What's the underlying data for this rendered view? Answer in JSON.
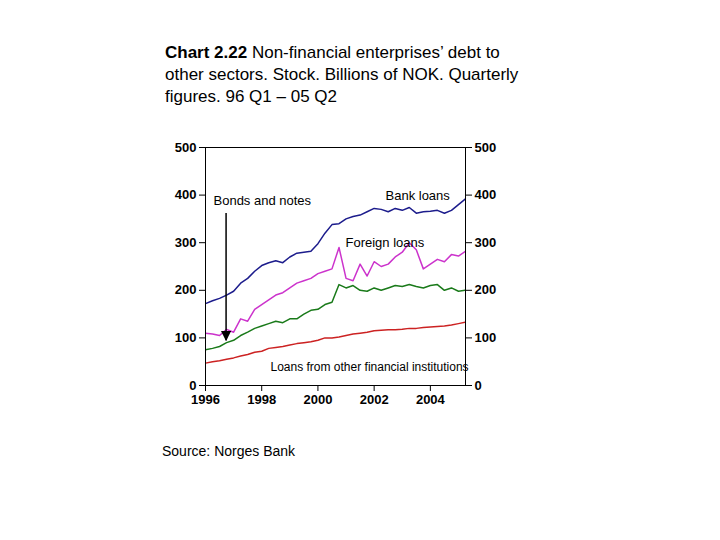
{
  "chart_data": {
    "type": "line",
    "title": "Chart 2.22 Non-financial enterprises’ debt to other sectors. Stock. Billions of NOK. Quarterly figures. 96 Q1 – 05 Q2",
    "source": "Source: Norges Bank",
    "x": [
      1996,
      1996.25,
      1996.5,
      1996.75,
      1997,
      1997.25,
      1997.5,
      1997.75,
      1998,
      1998.25,
      1998.5,
      1998.75,
      1999,
      1999.25,
      1999.5,
      1999.75,
      2000,
      2000.25,
      2000.5,
      2000.75,
      2001,
      2001.25,
      2001.5,
      2001.75,
      2002,
      2002.25,
      2002.5,
      2002.75,
      2003,
      2003.25,
      2003.5,
      2003.75,
      2004,
      2004.25,
      2004.5,
      2004.75,
      2005,
      2005.25
    ],
    "series": [
      {
        "name": "Bank loans",
        "color": "#1c1c8c",
        "values": [
          172,
          178,
          183,
          190,
          198,
          215,
          225,
          240,
          252,
          258,
          262,
          258,
          270,
          278,
          280,
          282,
          298,
          320,
          338,
          340,
          350,
          355,
          358,
          365,
          372,
          370,
          365,
          372,
          368,
          374,
          362,
          365,
          366,
          368,
          362,
          368,
          380,
          392
        ]
      },
      {
        "name": "Foreign loans",
        "color": "#cc33cc",
        "values": [
          110,
          108,
          105,
          118,
          112,
          140,
          135,
          160,
          170,
          180,
          190,
          195,
          205,
          215,
          220,
          225,
          235,
          240,
          245,
          290,
          225,
          220,
          255,
          230,
          260,
          250,
          255,
          270,
          280,
          300,
          285,
          245,
          255,
          265,
          260,
          275,
          272,
          282
        ]
      },
      {
        "name": "Bonds and notes",
        "color": "#1a7a1a",
        "values": [
          75,
          78,
          82,
          90,
          95,
          105,
          112,
          120,
          125,
          130,
          135,
          132,
          140,
          140,
          150,
          158,
          160,
          170,
          175,
          212,
          205,
          210,
          200,
          198,
          205,
          200,
          205,
          210,
          208,
          212,
          208,
          205,
          210,
          212,
          200,
          205,
          198,
          200
        ]
      },
      {
        "name": "Loans from other financial institutions",
        "color": "#cc2222",
        "values": [
          47,
          50,
          52,
          55,
          58,
          62,
          65,
          70,
          72,
          78,
          80,
          82,
          85,
          88,
          90,
          92,
          95,
          100,
          100,
          102,
          105,
          108,
          110,
          112,
          115,
          116,
          117,
          117,
          118,
          120,
          120,
          122,
          123,
          124,
          125,
          127,
          130,
          133
        ]
      }
    ],
    "xlim": [
      1996,
      2005.25
    ],
    "xticks": [
      1996,
      1998,
      2000,
      2002,
      2004
    ],
    "ylim": [
      0,
      500
    ],
    "yticks": [
      0,
      100,
      200,
      300,
      400,
      500
    ],
    "grid": false
  }
}
